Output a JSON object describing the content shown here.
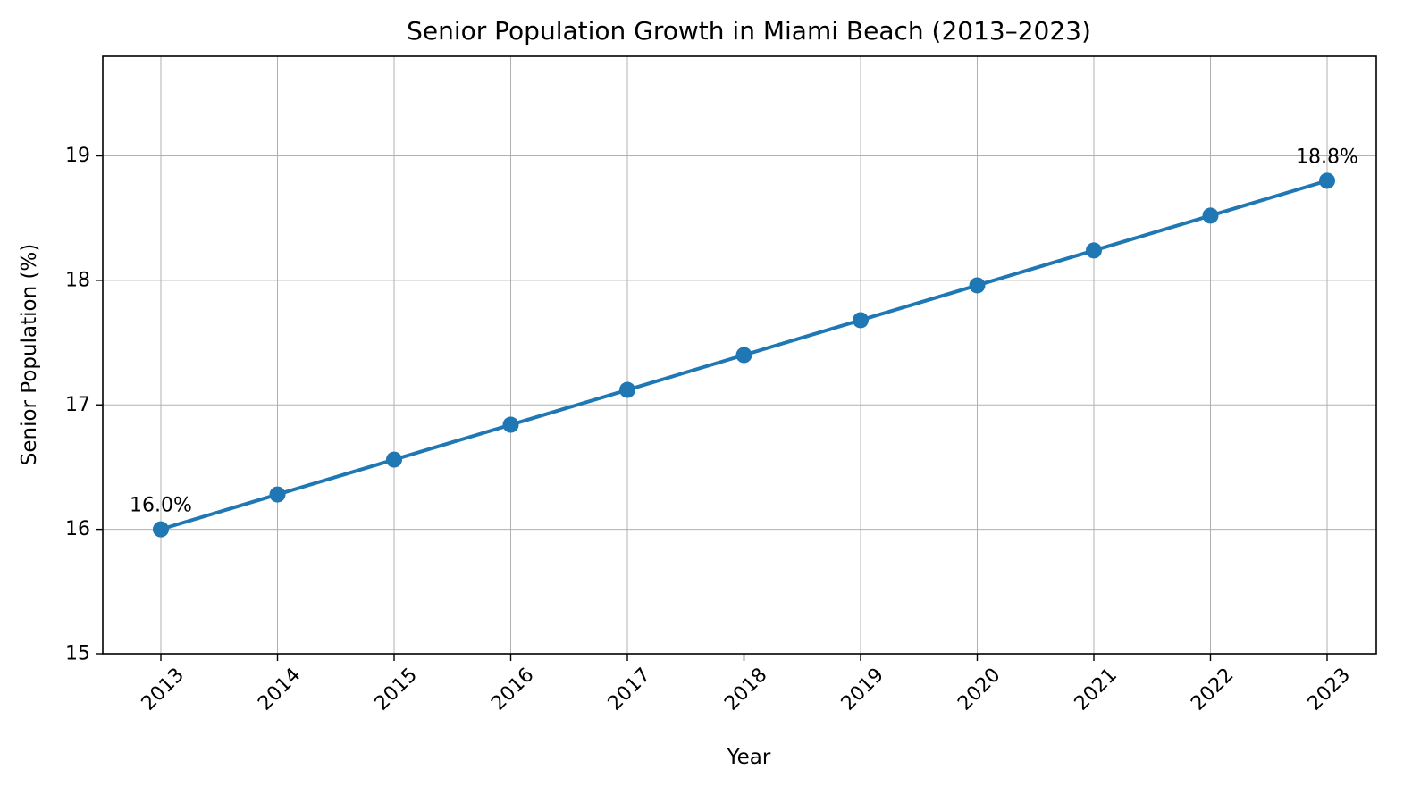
{
  "chart_data": {
    "type": "line",
    "title": "Senior Population Growth in Miami Beach (2013–2023)",
    "xlabel": "Year",
    "ylabel": "Senior Population (%)",
    "x": [
      "2013",
      "2014",
      "2015",
      "2016",
      "2017",
      "2018",
      "2019",
      "2020",
      "2021",
      "2022",
      "2023"
    ],
    "series": [
      {
        "values": [
          16.0,
          16.28,
          16.56,
          16.84,
          17.12,
          17.4,
          17.68,
          17.96,
          18.24,
          18.52,
          18.8
        ],
        "color": "#1f77b4",
        "marker": "circle"
      }
    ],
    "yticks": [
      "15",
      "16",
      "17",
      "18",
      "19"
    ],
    "ylim": [
      15,
      19.8
    ],
    "grid": true,
    "annotations": [
      {
        "x": "2013",
        "y": 16.0,
        "text": "16.0%"
      },
      {
        "x": "2023",
        "y": 18.8,
        "text": "18.8%"
      }
    ]
  }
}
